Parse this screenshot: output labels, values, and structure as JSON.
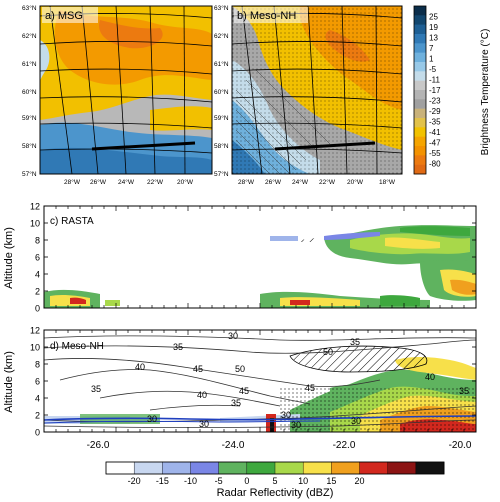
{
  "figure": {
    "map_a_label": "a) MSG",
    "map_b_label": "b) Meso-NH",
    "panel_c_label": "c) RASTA",
    "panel_d_label": "d) Meso-NH",
    "map_lat_labels": [
      "63°N",
      "62°N",
      "61°N",
      "60°N",
      "59°N",
      "58°N",
      "57°N"
    ],
    "map_lon_labels": [
      "28°W",
      "26°W",
      "24°W",
      "22°W",
      "20°W",
      "18°W"
    ],
    "tb_colorbar": {
      "title": "Brightness Temperature (°C)",
      "ticks": [
        "25",
        "19",
        "13",
        "7",
        "1",
        "-5",
        "-11",
        "-17",
        "-23",
        "-29",
        "-35",
        "-41",
        "-47",
        "-55",
        "-80"
      ],
      "colors": [
        "#0b2d4a",
        "#12466e",
        "#1e5f94",
        "#3079b5",
        "#4c95cc",
        "#6fb1dd",
        "#98c9e8",
        "#c4dcea",
        "#c8c8c8",
        "#b4b4b4",
        "#a0a0a0",
        "#c9b27a",
        "#e2c24a",
        "#f2c200",
        "#f5a500",
        "#f39200",
        "#ec7a10",
        "#e06a14"
      ]
    },
    "altitude_axis": {
      "label": "Altitude (km)",
      "ticks": [
        "0",
        "2",
        "4",
        "6",
        "8",
        "10",
        "12"
      ]
    },
    "lon_axis_ticks": [
      "-26.0",
      "-24.0",
      "-22.0",
      "-20.0"
    ],
    "contour_labels": [
      "30",
      "35",
      "40",
      "45",
      "50",
      "35",
      "35",
      "40",
      "45",
      "50",
      "40",
      "35",
      "45",
      "35",
      "30",
      "30",
      "30",
      "30",
      "30"
    ],
    "reflectivity_colorbar": {
      "title": "Radar Reflectivity (dBZ)",
      "ticks": [
        "-20",
        "-15",
        "-10",
        "-5",
        "0",
        "5",
        "10",
        "15",
        "20"
      ],
      "colors": [
        "#ffffff",
        "#c8d7f0",
        "#9fb4ea",
        "#7a86e6",
        "#5fb35f",
        "#3ea83e",
        "#a8d84a",
        "#f7e04a",
        "#f0a01e",
        "#d2281e",
        "#8c1414",
        "#111111"
      ]
    }
  }
}
